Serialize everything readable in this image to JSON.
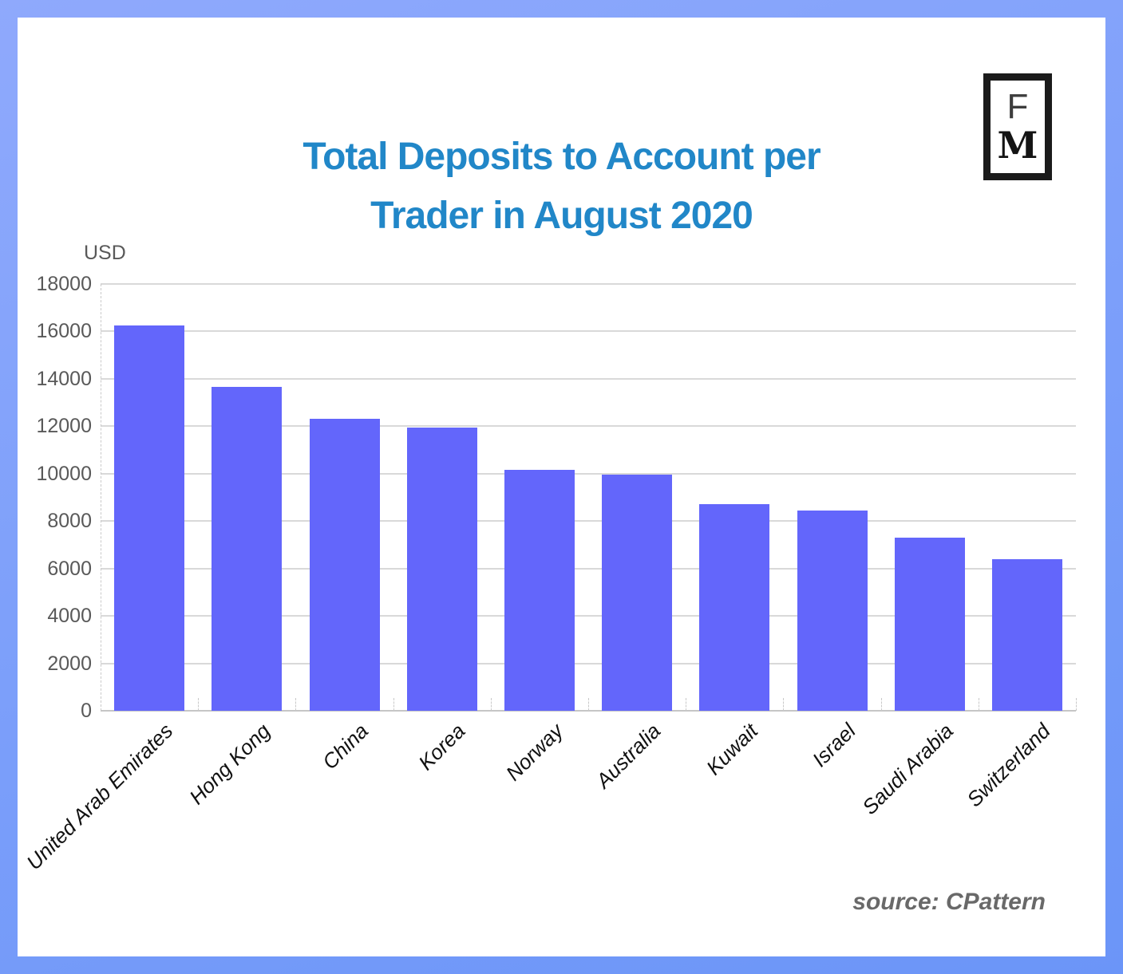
{
  "frame": {
    "border_color_top": "#8fa9fc",
    "border_color_bottom": "#6b95f8"
  },
  "header": {
    "title_line1": "Total Deposits to Account per",
    "title_line2": "Trader in August 2020",
    "title_color": "#2187c8"
  },
  "logo": {
    "letter_top": "F",
    "letter_bottom": "M"
  },
  "chart_data": {
    "type": "bar",
    "title": "Total Deposits to Account per Trader in August 2020",
    "unit_label": "USD",
    "categories": [
      "United Arab Emirates",
      "Hong Kong",
      "China",
      "Korea",
      "Norway",
      "Australia",
      "Kuwait",
      "Israel",
      "Saudi Arabia",
      "Switzerland"
    ],
    "values": [
      16250,
      13650,
      12300,
      11950,
      10150,
      9950,
      8700,
      8450,
      7300,
      6400
    ],
    "xlabel": "",
    "ylabel": "USD",
    "ylim": [
      0,
      18000
    ],
    "ytick_step": 2000,
    "grid": true,
    "gridline_color": "#d9d9d9",
    "bar_color": "#6366fb",
    "legend": "none"
  },
  "footer": {
    "source": "source: CPattern"
  }
}
